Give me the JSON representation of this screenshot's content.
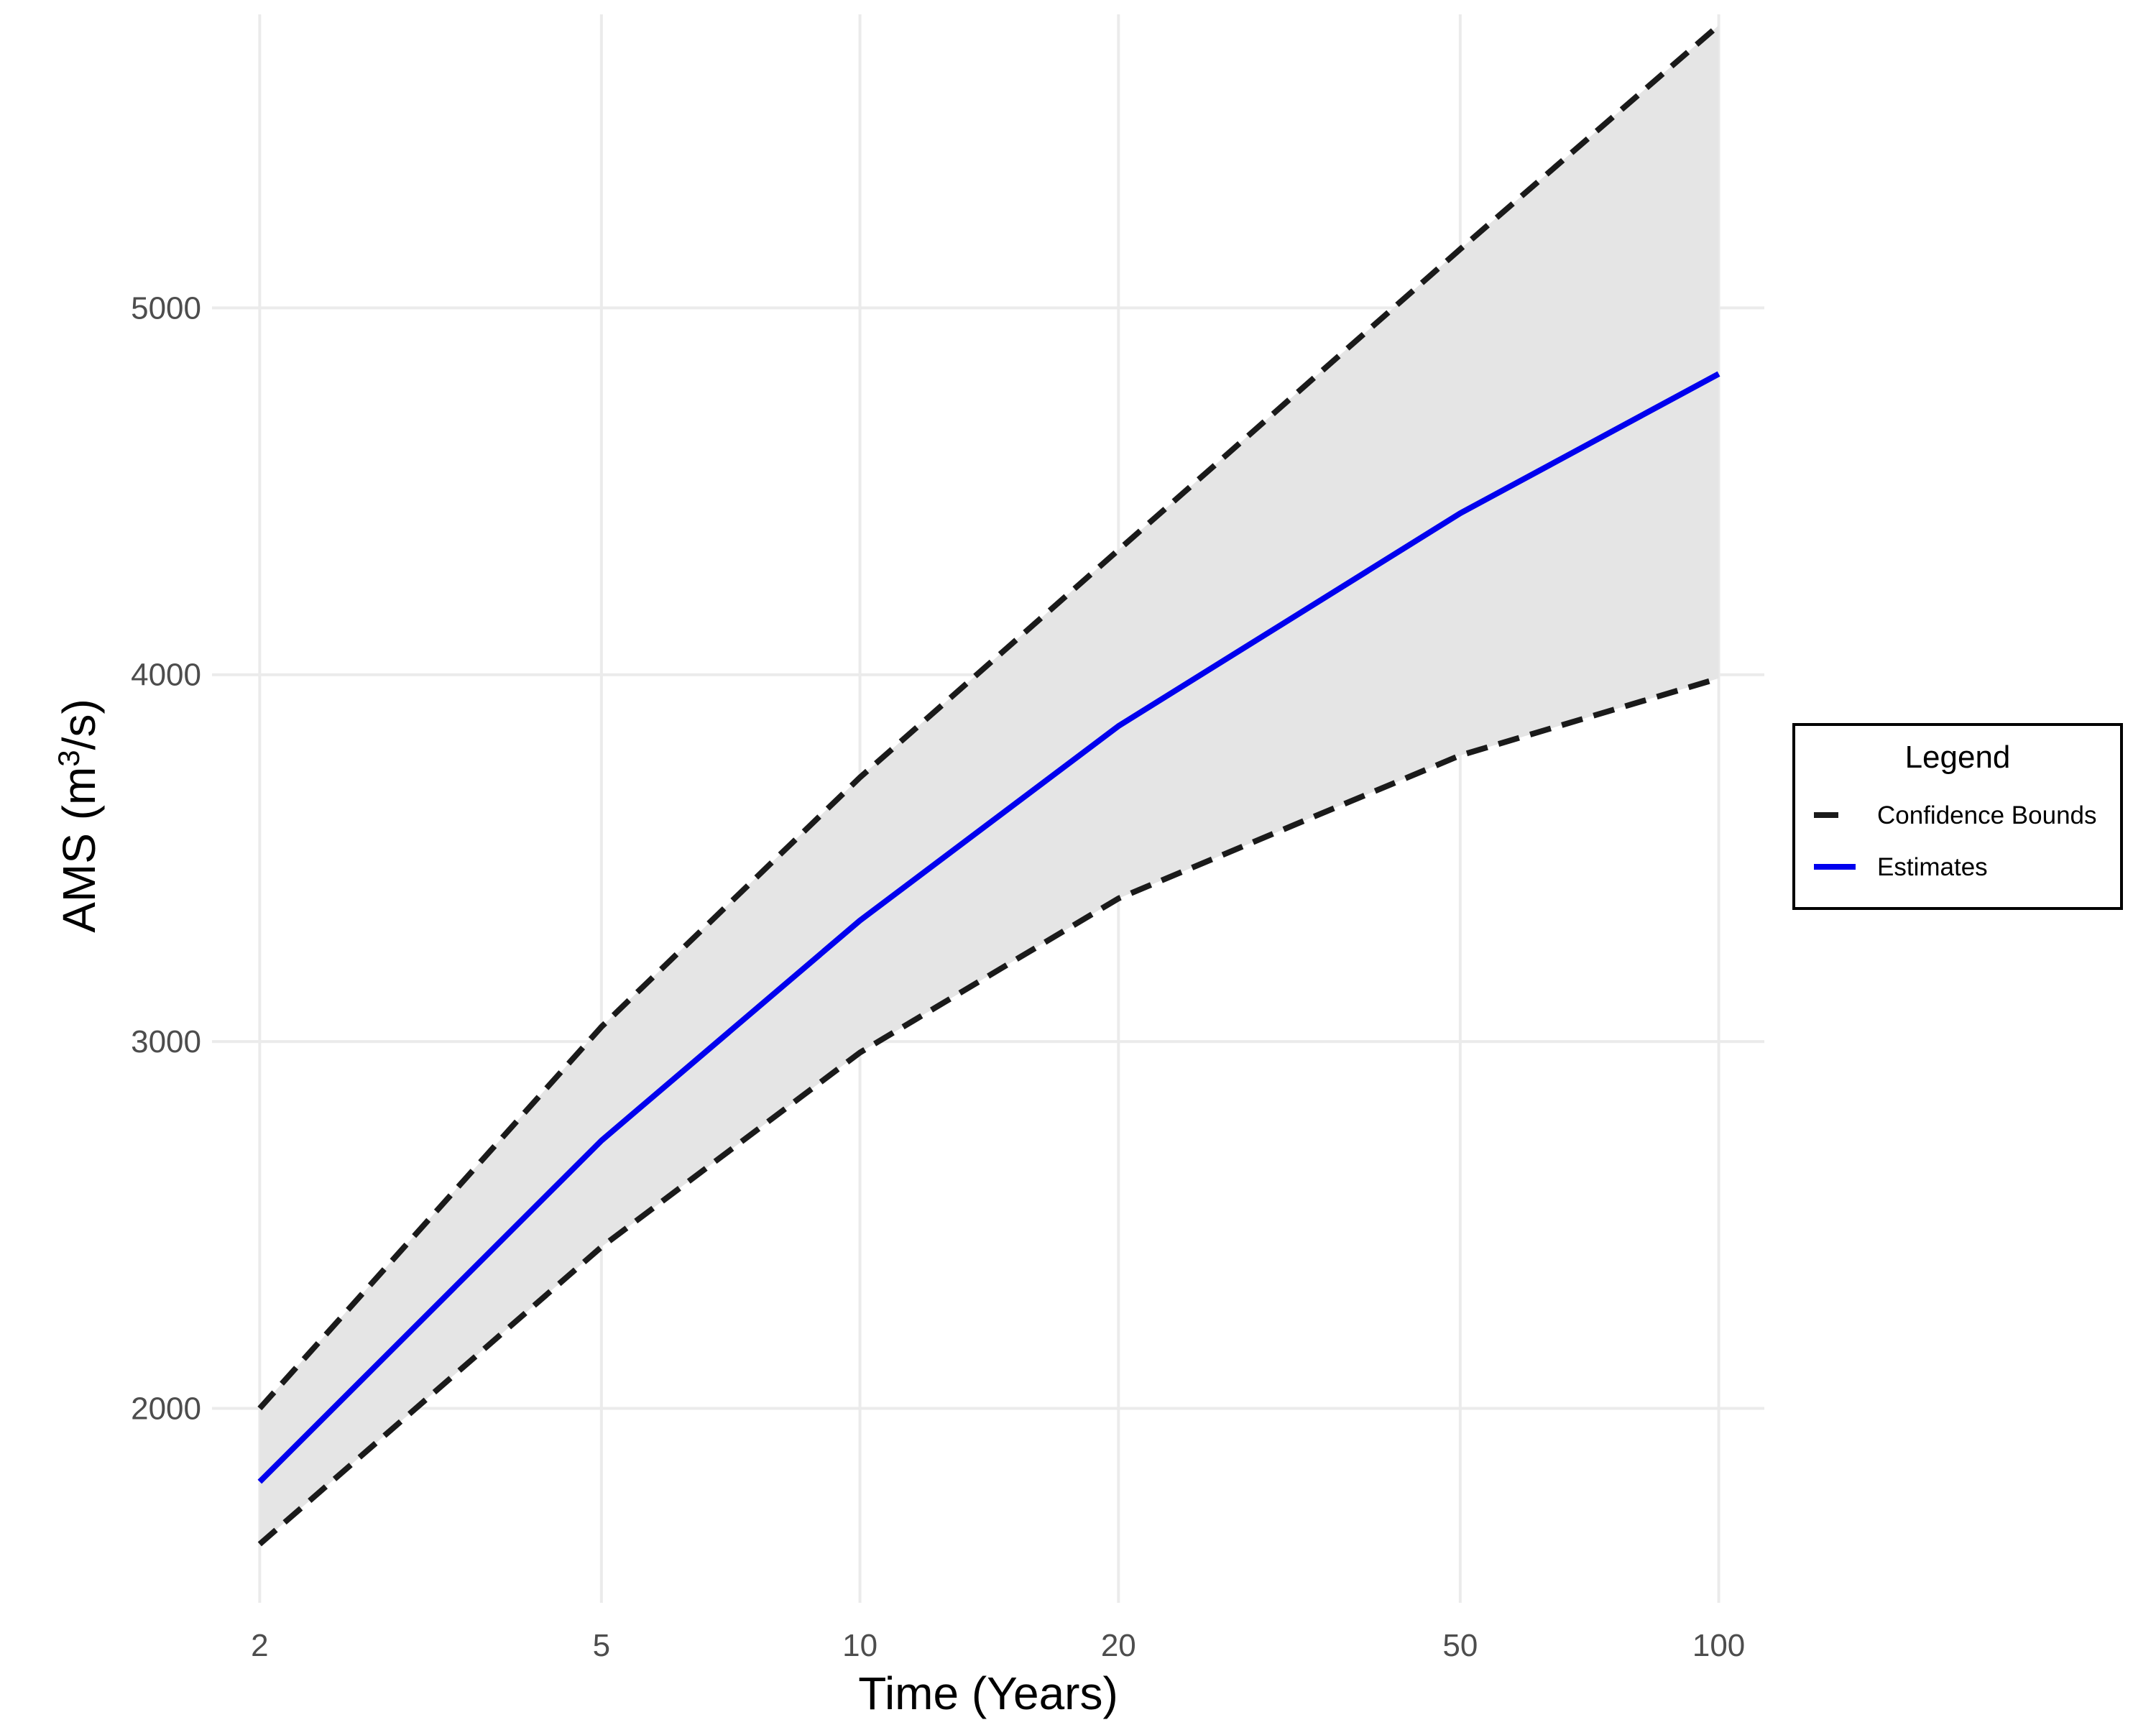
{
  "chart_data": {
    "type": "line",
    "title": "",
    "xlabel": "Time (Years)",
    "ylabel": {
      "prefix": "AMS (m",
      "superscript": "3",
      "suffix": "/s)"
    },
    "x_scale": "log",
    "x": [
      2,
      5,
      10,
      20,
      50,
      100
    ],
    "x_ticks": [
      "2",
      "5",
      "10",
      "20",
      "50",
      "100"
    ],
    "y_ticks": [
      "2000",
      "3000",
      "4000",
      "5000"
    ],
    "xlim": [
      1.76,
      113
    ],
    "ylim": [
      1470,
      5800
    ],
    "series": [
      {
        "name": "Estimates",
        "color": "#0000ee",
        "style": "solid",
        "values": [
          1800,
          2730,
          3330,
          3860,
          4440,
          4820
        ]
      },
      {
        "name": "Confidence Bounds (upper)",
        "color": "#1a1a1a",
        "style": "dashed",
        "values": [
          2000,
          3040,
          3720,
          4340,
          5160,
          5770
        ]
      },
      {
        "name": "Confidence Bounds (lower)",
        "color": "#1a1a1a",
        "style": "dashed",
        "values": [
          1630,
          2440,
          2970,
          3390,
          3780,
          3990
        ]
      }
    ],
    "ribbon": {
      "fill": "#e5e5e5",
      "lower": "Confidence Bounds (lower)",
      "upper": "Confidence Bounds (upper)"
    },
    "legend": {
      "title": "Legend",
      "placement": "right",
      "items": [
        {
          "label": "Confidence Bounds",
          "color": "#1a1a1a",
          "style": "dashed"
        },
        {
          "label": "Estimates",
          "color": "#0000ee",
          "style": "solid"
        }
      ]
    }
  }
}
